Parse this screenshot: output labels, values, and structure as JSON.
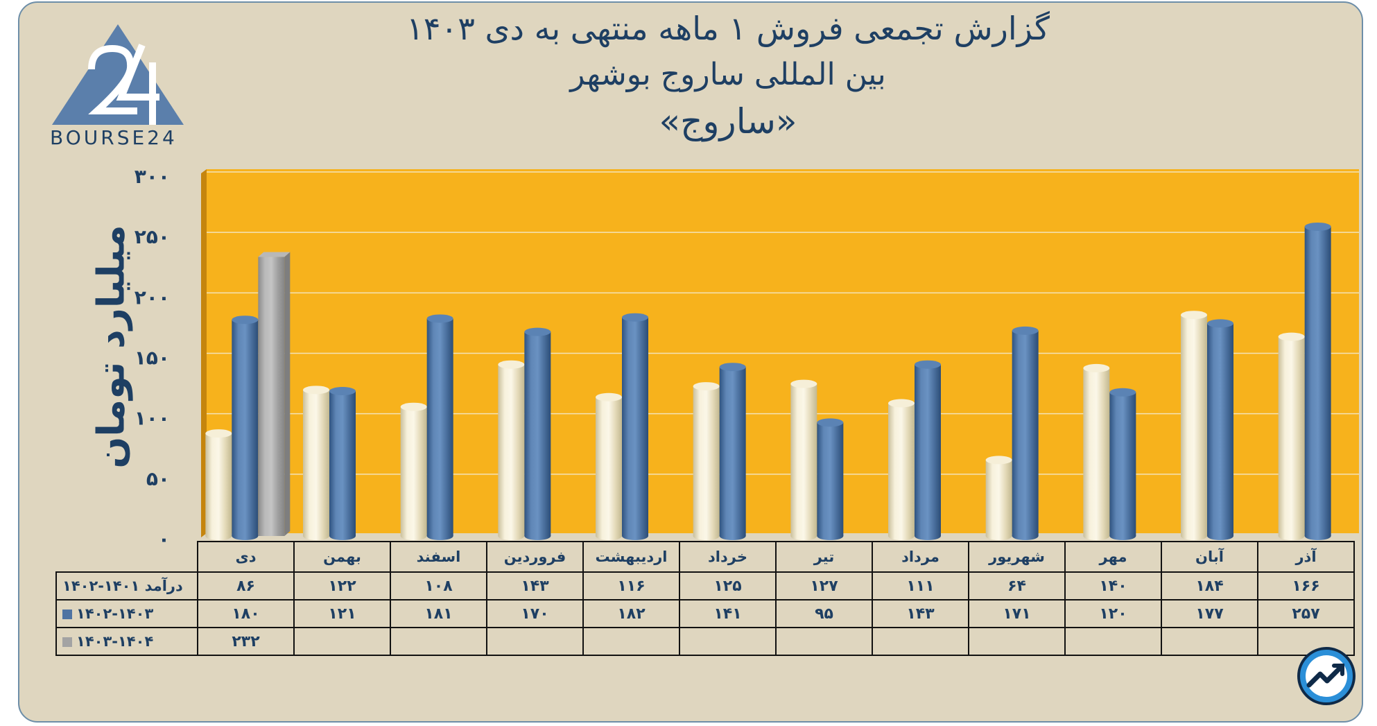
{
  "title_line1": "گزارش تجمعی فروش ۱ ماهه منتهی به دی ۱۴۰۳",
  "title_line2": "بین المللی ساروج بوشهر",
  "title_line3": "«ساروج»",
  "logo_text": "BOURSE24",
  "colors": {
    "background": "#dfd6bf",
    "plot_area": "#f7b21c",
    "series_1": "#ece3c6",
    "series_2": "#4e73a2",
    "series_3": "#a3a3a3",
    "text": "#1e3f63"
  },
  "chart_data": {
    "type": "bar",
    "ylabel": "میلیارد تومان",
    "ylim": [
      0,
      300
    ],
    "yticks": [
      "۰",
      "۵۰",
      "۱۰۰",
      "۱۵۰",
      "۲۰۰",
      "۲۵۰",
      "۳۰۰"
    ],
    "ytick_values": [
      0,
      50,
      100,
      150,
      200,
      250,
      300
    ],
    "grid": true,
    "categories": [
      "دی",
      "بهمن",
      "اسفند",
      "فروردین",
      "اردیبهشت",
      "خرداد",
      "تیر",
      "مرداد",
      "شهریور",
      "مهر",
      "آبان",
      "آذر"
    ],
    "series": [
      {
        "name": "درآمد ۱۴۰۱-۱۴۰۲",
        "values": [
          86,
          122,
          108,
          143,
          116,
          125,
          127,
          111,
          64,
          140,
          184,
          166
        ]
      },
      {
        "name": "۱۴۰۲-۱۴۰۳",
        "values": [
          180,
          121,
          181,
          170,
          182,
          141,
          95,
          143,
          171,
          120,
          177,
          257
        ]
      },
      {
        "name": "۱۴۰۳-۱۴۰۴",
        "values": [
          232,
          null,
          null,
          null,
          null,
          null,
          null,
          null,
          null,
          null,
          null,
          null
        ]
      }
    ],
    "table_text": [
      [
        "۸۶",
        "۱۲۲",
        "۱۰۸",
        "۱۴۳",
        "۱۱۶",
        "۱۲۵",
        "۱۲۷",
        "۱۱۱",
        "۶۴",
        "۱۴۰",
        "۱۸۴",
        "۱۶۶"
      ],
      [
        "۱۸۰",
        "۱۲۱",
        "۱۸۱",
        "۱۷۰",
        "۱۸۲",
        "۱۴۱",
        "۹۵",
        "۱۴۳",
        "۱۷۱",
        "۱۲۰",
        "۱۷۷",
        "۲۵۷"
      ],
      [
        "۲۳۲",
        "",
        "",
        "",
        "",
        "",
        "",
        "",
        "",
        "",
        "",
        ""
      ]
    ]
  }
}
